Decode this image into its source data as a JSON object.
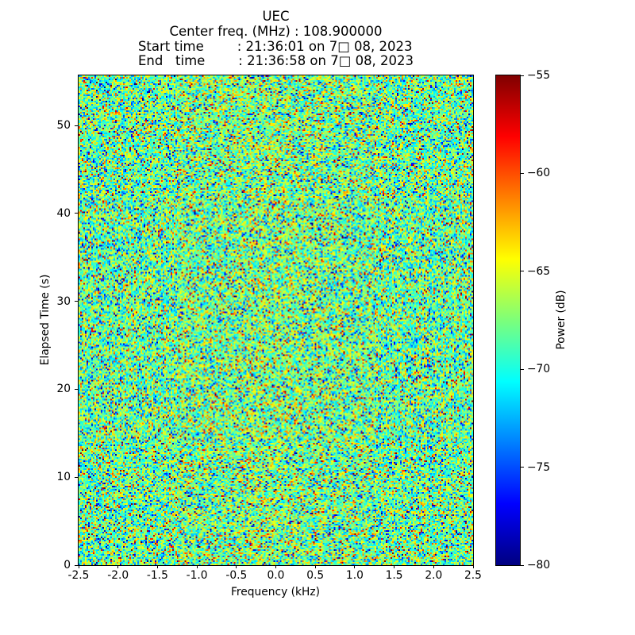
{
  "header": {
    "title": "UEC",
    "center_freq_line": "Center freq. (MHz) : 108.900000",
    "start_time_line": "Start time        : 21:36:01 on 7□ 08, 2023",
    "end_time_line": "End   time        : 21:36:58 on 7□ 08, 2023"
  },
  "chart_data": {
    "type": "heatmap",
    "title": "UEC",
    "xlabel": "Frequency (kHz)",
    "ylabel": "Elapsed Time (s)",
    "colorbar_label": "Power (dB)",
    "x_ticks": [
      "-2.5",
      "-2.0",
      "-1.5",
      "-1.0",
      "-0.5",
      "0.0",
      "0.5",
      "1.0",
      "1.5",
      "2.0",
      "2.5"
    ],
    "x_tick_values": [
      -2.5,
      -2.0,
      -1.5,
      -1.0,
      -0.5,
      0.0,
      0.5,
      1.0,
      1.5,
      2.0,
      2.5
    ],
    "x_range": [
      -2.5,
      2.5
    ],
    "y_ticks": [
      "0",
      "10",
      "20",
      "30",
      "40",
      "50"
    ],
    "y_tick_values": [
      0,
      10,
      20,
      30,
      40,
      50
    ],
    "y_range": [
      0,
      55.7
    ],
    "colorbar_ticks": [
      "−55",
      "−60",
      "−65",
      "−70",
      "−75",
      "−80"
    ],
    "colorbar_tick_values": [
      -55,
      -60,
      -65,
      -70,
      -75,
      -80
    ],
    "power_range_db": [
      -80,
      -55
    ],
    "colormap": "jet",
    "grid": false,
    "legend": "none",
    "content": "broadband random noise spectrogram; no distinct narrowband signal visible, mostly green/cyan speckle with sparse yellow/orange/red and blue outliers",
    "noise_model": {
      "mean_db": -68.3,
      "std_db": 3.3,
      "outlier_fraction": 0.14,
      "center_bump_db": 0.8
    }
  }
}
